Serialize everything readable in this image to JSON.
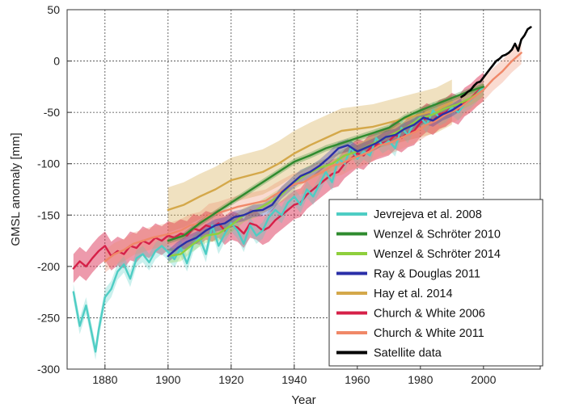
{
  "chart_data": {
    "type": "line",
    "title": "",
    "xlabel": "Year",
    "ylabel": "GMSL anomaly [mm]",
    "xlim": [
      1868,
      2018
    ],
    "ylim": [
      -300,
      50
    ],
    "xticks": [
      1880,
      1900,
      1920,
      1940,
      1960,
      1980,
      2000
    ],
    "yticks": [
      -300,
      -250,
      -200,
      -150,
      -100,
      -50,
      0,
      50
    ],
    "grid": "dashed",
    "legend_position": "bottom-right",
    "series": [
      {
        "name": "Jevrejeva et al. 2008",
        "color": "#4ecdc4",
        "x": [
          1870,
          1872,
          1874,
          1876,
          1877,
          1878,
          1880,
          1882,
          1884,
          1886,
          1888,
          1890,
          1892,
          1894,
          1896,
          1898,
          1900,
          1902,
          1904,
          1906,
          1908,
          1910,
          1912,
          1914,
          1916,
          1918,
          1920,
          1922,
          1924,
          1926,
          1928,
          1930,
          1932,
          1934,
          1936,
          1938,
          1940,
          1942,
          1944,
          1946,
          1948,
          1950,
          1952,
          1954,
          1956,
          1958,
          1960,
          1962,
          1964,
          1966,
          1968,
          1970,
          1972,
          1974,
          1976,
          1978,
          1980,
          1982,
          1984,
          1986,
          1988,
          1990,
          1992,
          1994,
          1996,
          2000
        ],
        "y": [
          -225,
          -258,
          -238,
          -268,
          -283,
          -262,
          -230,
          -222,
          -205,
          -198,
          -212,
          -192,
          -188,
          -196,
          -185,
          -180,
          -186,
          -193,
          -182,
          -197,
          -178,
          -172,
          -188,
          -160,
          -180,
          -168,
          -158,
          -165,
          -178,
          -160,
          -170,
          -165,
          -152,
          -145,
          -150,
          -138,
          -132,
          -140,
          -125,
          -132,
          -120,
          -108,
          -118,
          -95,
          -100,
          -84,
          -95,
          -88,
          -92,
          -75,
          -82,
          -78,
          -85,
          -65,
          -72,
          -60,
          -55,
          -62,
          -48,
          -55,
          -52,
          -45,
          -50,
          -42,
          -38,
          -25
        ]
      },
      {
        "name": "Wenzel & Schröter 2010",
        "color": "#2e8b2e",
        "x": [
          1900,
          1905,
          1910,
          1915,
          1920,
          1925,
          1930,
          1935,
          1940,
          1945,
          1950,
          1955,
          1960,
          1965,
          1970,
          1975,
          1980,
          1985,
          1990,
          1995,
          2000
        ],
        "y": [
          -175,
          -170,
          -158,
          -148,
          -138,
          -128,
          -118,
          -108,
          -98,
          -92,
          -85,
          -80,
          -75,
          -70,
          -65,
          -55,
          -48,
          -42,
          -36,
          -30,
          -25
        ]
      },
      {
        "name": "Wenzel & Schröter 2014",
        "color": "#8fcf3c",
        "x": [
          1900,
          1904,
          1908,
          1912,
          1916,
          1920,
          1924,
          1928,
          1932,
          1936,
          1940,
          1944,
          1948,
          1952,
          1956,
          1960,
          1964,
          1968,
          1972,
          1976,
          1980,
          1984,
          1988,
          1992,
          1996,
          2000
        ],
        "y": [
          -190,
          -188,
          -178,
          -170,
          -168,
          -160,
          -150,
          -145,
          -138,
          -130,
          -118,
          -110,
          -104,
          -100,
          -92,
          -88,
          -82,
          -76,
          -70,
          -64,
          -56,
          -52,
          -46,
          -42,
          -36,
          -28
        ]
      },
      {
        "name": "Ray & Douglas 2011",
        "color": "#2a2fa8",
        "x": [
          1900,
          1903,
          1906,
          1909,
          1912,
          1915,
          1918,
          1921,
          1924,
          1927,
          1930,
          1933,
          1936,
          1939,
          1942,
          1945,
          1948,
          1951,
          1954,
          1957,
          1960,
          1963,
          1966,
          1969,
          1972,
          1975,
          1978,
          1981,
          1984,
          1987,
          1990,
          1993
        ],
        "y": [
          -190,
          -182,
          -176,
          -172,
          -165,
          -160,
          -158,
          -152,
          -150,
          -146,
          -145,
          -140,
          -128,
          -120,
          -112,
          -108,
          -102,
          -94,
          -85,
          -82,
          -88,
          -84,
          -80,
          -74,
          -72,
          -66,
          -62,
          -55,
          -58,
          -52,
          -48,
          -42
        ]
      },
      {
        "name": "Hay et al. 2014",
        "color": "#d4a84a",
        "x": [
          1900,
          1905,
          1910,
          1915,
          1920,
          1925,
          1930,
          1935,
          1940,
          1945,
          1950,
          1955,
          1960,
          1965,
          1970,
          1975,
          1980,
          1985,
          1990
        ],
        "y": [
          -145,
          -140,
          -132,
          -125,
          -116,
          -112,
          -108,
          -100,
          -90,
          -82,
          -75,
          -68,
          -66,
          -64,
          -60,
          -56,
          -52,
          -48,
          -40
        ]
      },
      {
        "name": "Church & White 2006",
        "color": "#d62048",
        "x": [
          1870,
          1872,
          1874,
          1876,
          1878,
          1880,
          1882,
          1884,
          1886,
          1888,
          1890,
          1892,
          1894,
          1896,
          1898,
          1900,
          1902,
          1904,
          1906,
          1908,
          1910,
          1912,
          1914,
          1916,
          1918,
          1920,
          1922,
          1924,
          1926,
          1928,
          1930,
          1932,
          1934,
          1936,
          1938,
          1940,
          1942,
          1944,
          1946,
          1948,
          1950,
          1952,
          1954,
          1956,
          1958,
          1960,
          1962,
          1964,
          1966,
          1968,
          1970,
          1972,
          1974,
          1976,
          1978,
          1980,
          1982,
          1984,
          1986,
          1988,
          1990,
          1992,
          1994,
          1996,
          1998,
          2000
        ],
        "y": [
          -202,
          -195,
          -200,
          -192,
          -185,
          -180,
          -190,
          -185,
          -188,
          -180,
          -182,
          -175,
          -178,
          -172,
          -175,
          -170,
          -172,
          -168,
          -170,
          -163,
          -165,
          -160,
          -162,
          -158,
          -165,
          -160,
          -162,
          -168,
          -158,
          -160,
          -165,
          -162,
          -155,
          -150,
          -145,
          -140,
          -138,
          -130,
          -125,
          -120,
          -115,
          -110,
          -108,
          -100,
          -95,
          -90,
          -92,
          -85,
          -82,
          -80,
          -78,
          -72,
          -75,
          -70,
          -68,
          -60,
          -55,
          -58,
          -52,
          -50,
          -45,
          -48,
          -40,
          -36,
          -30,
          -25
        ]
      },
      {
        "name": "Church & White 2011",
        "color": "#f08868",
        "x": [
          1880,
          1883,
          1886,
          1889,
          1892,
          1895,
          1898,
          1901,
          1904,
          1907,
          1910,
          1913,
          1916,
          1919,
          1922,
          1925,
          1928,
          1931,
          1934,
          1937,
          1940,
          1943,
          1946,
          1949,
          1952,
          1955,
          1958,
          1961,
          1964,
          1967,
          1970,
          1973,
          1976,
          1979,
          1982,
          1985,
          1988,
          1991,
          1994,
          1997,
          2000,
          2003,
          2006,
          2009,
          2012
        ],
        "y": [
          -195,
          -188,
          -184,
          -178,
          -175,
          -172,
          -170,
          -168,
          -165,
          -160,
          -158,
          -150,
          -148,
          -145,
          -142,
          -140,
          -138,
          -136,
          -130,
          -125,
          -120,
          -118,
          -112,
          -108,
          -102,
          -100,
          -95,
          -92,
          -88,
          -82,
          -80,
          -76,
          -72,
          -68,
          -62,
          -58,
          -52,
          -48,
          -42,
          -35,
          -28,
          -18,
          -10,
          0,
          8
        ]
      },
      {
        "name": "Satellite data",
        "color": "#000000",
        "x": [
          1993,
          1994,
          1995,
          1996,
          1997,
          1998,
          1999,
          2000,
          2001,
          2002,
          2003,
          2004,
          2005,
          2006,
          2007,
          2008,
          2009,
          2010,
          2011,
          2012,
          2013,
          2014,
          2015
        ],
        "y": [
          -35,
          -33,
          -30,
          -28,
          -24,
          -21,
          -20,
          -16,
          -12,
          -8,
          -4,
          0,
          2,
          5,
          6,
          8,
          11,
          17,
          10,
          21,
          25,
          31,
          33
        ]
      }
    ]
  }
}
